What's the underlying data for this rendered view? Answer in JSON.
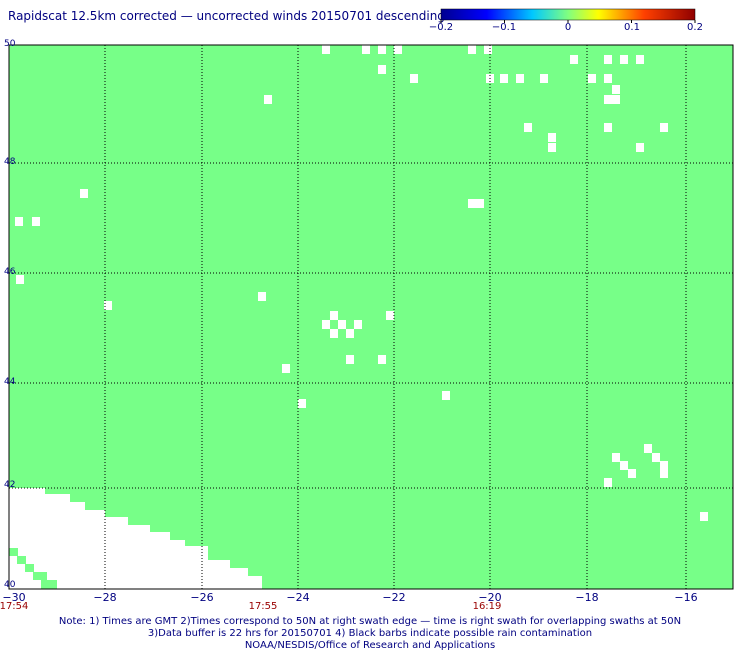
{
  "title": "Rapidscat 12.5km corrected — uncorrected winds 20150701 descending",
  "colorbar": {
    "ticks": [
      "−0.2",
      "−0.1",
      "0",
      "0.1",
      "0.2"
    ],
    "range": [
      -0.2,
      0.2
    ]
  },
  "map": {
    "field_color": "#77ff88",
    "no_data_color": "#ffffff",
    "lon_range": [
      -30,
      -15
    ],
    "lat_range": [
      40,
      50
    ],
    "lat_labels": [
      "50",
      "48",
      "46",
      "44",
      "42",
      "40"
    ],
    "lon_labels": [
      "−30",
      "−28",
      "−26",
      "−24",
      "−22",
      "−20",
      "−18",
      "−16"
    ],
    "times": [
      {
        "label": "17:54",
        "lon": -30
      },
      {
        "label": "17:55",
        "lon": -24
      },
      {
        "label": "16:19",
        "lon": -20
      }
    ]
  },
  "notes": [
    "Note: 1) Times are GMT 2)Times correspond to 50N at right swath edge — time is right swath for overlapping swaths at 50N",
    "3)Data buffer is 22 hrs for 20150701 4) Black barbs indicate possible rain contamination",
    "NOAA/NESDIS/Office of Research and Applications"
  ]
}
